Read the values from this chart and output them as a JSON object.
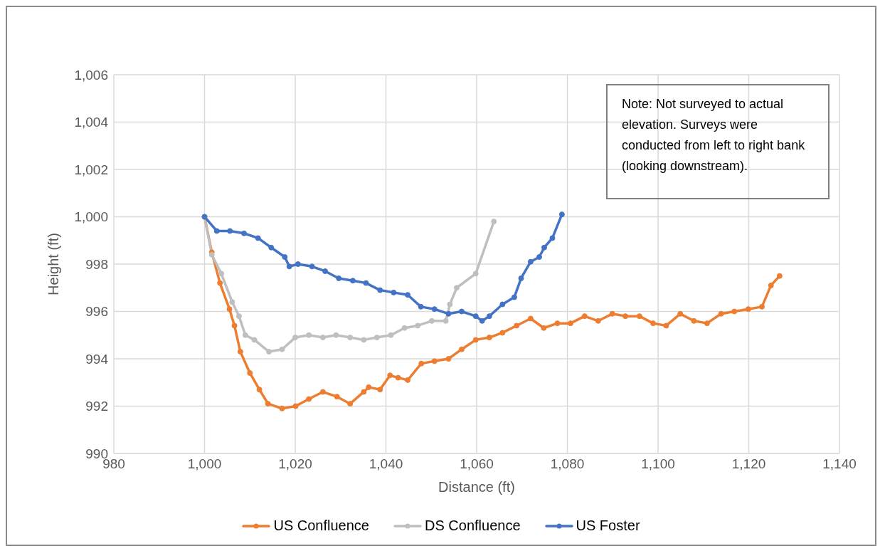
{
  "chart_data": {
    "type": "line",
    "xlabel": "Distance (ft)",
    "ylabel": "Height (ft)",
    "xlim": [
      980,
      1140
    ],
    "xticks": [
      980,
      {
        "value": 1000,
        "label": "1,000"
      },
      {
        "value": 1020,
        "label": "1,020"
      },
      {
        "value": 1040,
        "label": "1,040"
      },
      {
        "value": 1060,
        "label": "1,060"
      },
      {
        "value": 1080,
        "label": "1,080"
      },
      {
        "value": 1100,
        "label": "1,100"
      },
      {
        "value": 1120,
        "label": "1,120"
      },
      {
        "value": 1140,
        "label": "1,140"
      }
    ],
    "ylim": [
      990,
      1006
    ],
    "yticks": [
      990,
      992,
      994,
      996,
      998,
      {
        "value": 1000,
        "label": "1,000"
      },
      {
        "value": 1002,
        "label": "1,002"
      },
      {
        "value": 1004,
        "label": "1,004"
      },
      {
        "value": 1006,
        "label": "1,006"
      }
    ],
    "grid": true,
    "legend": "bottom",
    "marker": "circle",
    "line_style": "solid",
    "annotations": [
      "Note: Not surveyed to actual elevation. Surveys were conducted from left to right bank (looking downstream)."
    ],
    "series": [
      {
        "name": "US Confluence",
        "color": "#ed7d31",
        "x": [
          1000,
          1001.6,
          1003.4,
          1005.5,
          1006.6,
          1007.9,
          1010,
          1012.1,
          1014,
          1017.1,
          1020.1,
          1023,
          1026.1,
          1029.2,
          1032.1,
          1035.1,
          1036.2,
          1038.7,
          1040.9,
          1042.7,
          1044.8,
          1047.8,
          1050.7,
          1053.8,
          1056.7,
          1059.8,
          1062.8,
          1065.7,
          1068.8,
          1071.9,
          1074.8,
          1077.8,
          1080.7,
          1083.8,
          1086.8,
          1089.9,
          1092.8,
          1095.9,
          1098.9,
          1101.8,
          1104.9,
          1107.9,
          1110.8,
          1113.9,
          1116.8,
          1119.9,
          1122.9,
          1124.9,
          1126.8
        ],
        "values": [
          1000,
          998.5,
          997.2,
          996.1,
          995.4,
          994.3,
          993.4,
          992.7,
          992.1,
          991.9,
          992,
          992.3,
          992.6,
          992.4,
          992.1,
          992.6,
          992.8,
          992.7,
          993.3,
          993.2,
          993.1,
          993.8,
          993.9,
          994,
          994.4,
          994.8,
          994.9,
          995.1,
          995.4,
          995.7,
          995.3,
          995.5,
          995.5,
          995.8,
          995.6,
          995.9,
          995.8,
          995.8,
          995.5,
          995.4,
          995.9,
          995.6,
          995.5,
          995.9,
          996,
          996.1,
          996.2,
          997.1,
          997.5
        ]
      },
      {
        "name": "DS Confluence",
        "color": "#bfbfbf",
        "x": [
          1000,
          1001.6,
          1003.7,
          1006.1,
          1007.6,
          1009,
          1011,
          1014.2,
          1017.1,
          1020,
          1023,
          1026.1,
          1029,
          1032.1,
          1035.1,
          1038,
          1041.1,
          1044.1,
          1047,
          1050.1,
          1053.2,
          1054.1,
          1055.6,
          1059.8,
          1063.8
        ],
        "values": [
          1000,
          998.4,
          997.6,
          996.4,
          995.8,
          995,
          994.8,
          994.3,
          994.4,
          994.9,
          995,
          994.9,
          995,
          994.9,
          994.8,
          994.9,
          995,
          995.3,
          995.4,
          995.6,
          995.6,
          996.3,
          997,
          997.6,
          999.8
        ]
      },
      {
        "name": "US Foster",
        "color": "#4472c4",
        "x": [
          1000,
          1002.7,
          1005.6,
          1008.7,
          1011.8,
          1014.7,
          1017.7,
          1018.7,
          1020.6,
          1023.7,
          1026.6,
          1029.6,
          1032.7,
          1035.6,
          1038.7,
          1041.7,
          1044.8,
          1047.7,
          1050.7,
          1053.8,
          1056.7,
          1059.8,
          1061.2,
          1062.8,
          1065.7,
          1068.3,
          1069.8,
          1071.9,
          1073.8,
          1074.9,
          1076.7,
          1078.8
        ],
        "values": [
          1000,
          999.4,
          999.4,
          999.3,
          999.1,
          998.7,
          998.3,
          997.9,
          998,
          997.9,
          997.7,
          997.4,
          997.3,
          997.2,
          996.9,
          996.8,
          996.7,
          996.2,
          996.1,
          995.9,
          996,
          995.8,
          995.6,
          995.8,
          996.3,
          996.6,
          997.4,
          998.1,
          998.3,
          998.7,
          999.1,
          1000.1
        ]
      }
    ]
  }
}
